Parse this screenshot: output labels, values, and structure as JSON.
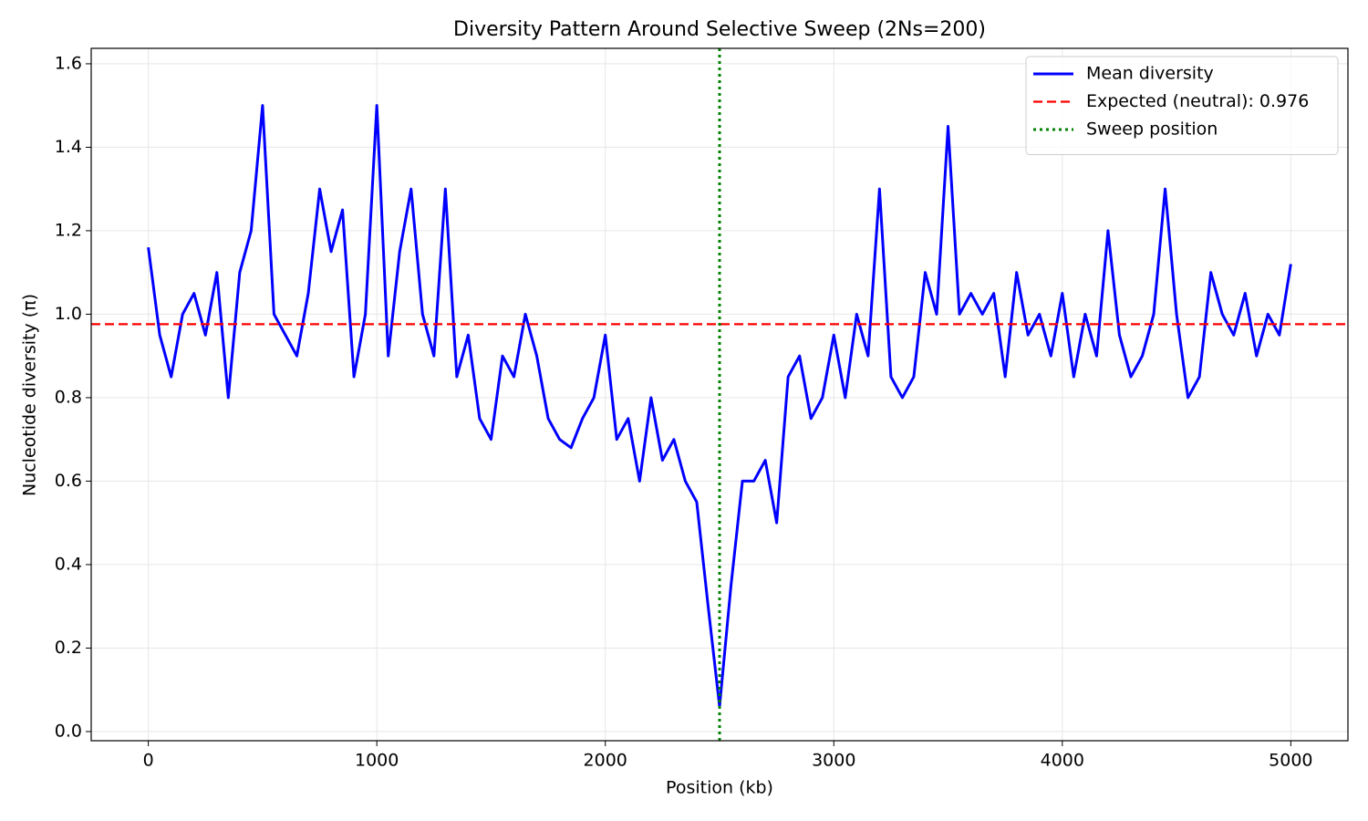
{
  "chart_data": {
    "type": "line",
    "title": "Diversity Pattern Around Selective Sweep (2Ns=200)",
    "x_label": "Position (kb)",
    "y_label": "Nucleotide diversity (π)",
    "x": [
      0,
      50,
      100,
      150,
      200,
      250,
      300,
      350,
      400,
      450,
      500,
      550,
      600,
      650,
      700,
      750,
      800,
      850,
      900,
      950,
      1000,
      1050,
      1100,
      1150,
      1200,
      1250,
      1300,
      1350,
      1400,
      1450,
      1500,
      1550,
      1600,
      1650,
      1700,
      1750,
      1800,
      1850,
      1900,
      1950,
      2000,
      2050,
      2100,
      2150,
      2200,
      2250,
      2300,
      2350,
      2400,
      2450,
      2500,
      2550,
      2600,
      2650,
      2700,
      2750,
      2800,
      2850,
      2900,
      2950,
      3000,
      3050,
      3100,
      3150,
      3200,
      3250,
      3300,
      3350,
      3400,
      3450,
      3500,
      3550,
      3600,
      3650,
      3700,
      3750,
      3800,
      3850,
      3900,
      3950,
      4000,
      4050,
      4100,
      4150,
      4200,
      4250,
      4300,
      4350,
      4400,
      4450,
      4500,
      4550,
      4600,
      4650,
      4700,
      4750,
      4800,
      4850,
      4900,
      4950,
      5000
    ],
    "series": [
      {
        "name": "Mean diversity",
        "color": "#0000ff",
        "values": [
          1.16,
          0.95,
          0.85,
          1.0,
          1.05,
          0.95,
          1.1,
          0.8,
          1.1,
          1.2,
          1.5,
          1.0,
          0.95,
          0.9,
          1.05,
          1.3,
          1.15,
          1.25,
          0.85,
          1.0,
          1.5,
          0.9,
          1.15,
          1.3,
          1.0,
          0.9,
          1.3,
          0.85,
          0.95,
          0.75,
          0.7,
          0.9,
          0.85,
          1.0,
          0.9,
          0.75,
          0.7,
          0.68,
          0.75,
          0.8,
          0.95,
          0.7,
          0.75,
          0.6,
          0.8,
          0.65,
          0.7,
          0.6,
          0.55,
          0.3,
          0.06,
          0.35,
          0.6,
          0.6,
          0.65,
          0.5,
          0.85,
          0.9,
          0.75,
          0.8,
          0.95,
          0.8,
          1.0,
          0.9,
          1.3,
          0.85,
          0.8,
          0.85,
          1.1,
          1.0,
          1.45,
          1.0,
          1.05,
          1.0,
          1.05,
          0.85,
          1.1,
          0.95,
          1.0,
          0.9,
          1.05,
          0.85,
          1.0,
          0.9,
          1.2,
          0.95,
          0.85,
          0.9,
          1.0,
          1.3,
          1.0,
          0.8,
          0.85,
          1.1,
          1.0,
          0.95,
          1.05,
          0.9,
          1.0,
          0.95,
          1.12
        ]
      }
    ],
    "hlines": [
      {
        "name": "Expected (neutral): 0.976",
        "value": 0.976,
        "color": "#ff0000",
        "style": "dashed"
      }
    ],
    "vlines": [
      {
        "name": "Sweep position",
        "value": 2500,
        "color": "#008000",
        "style": "dotted"
      }
    ],
    "xlim": [
      -250,
      5250
    ],
    "xticks": [
      0,
      1000,
      2000,
      3000,
      4000,
      5000
    ],
    "ylim": [
      -0.022,
      1.637
    ],
    "yticks": [
      {
        "value": 0,
        "label": "0.0"
      },
      0.2,
      0.4,
      0.6,
      0.8,
      {
        "value": 1,
        "label": "1.0"
      },
      1.2,
      1.4,
      1.6
    ],
    "grid": true,
    "legend": "upper right"
  }
}
